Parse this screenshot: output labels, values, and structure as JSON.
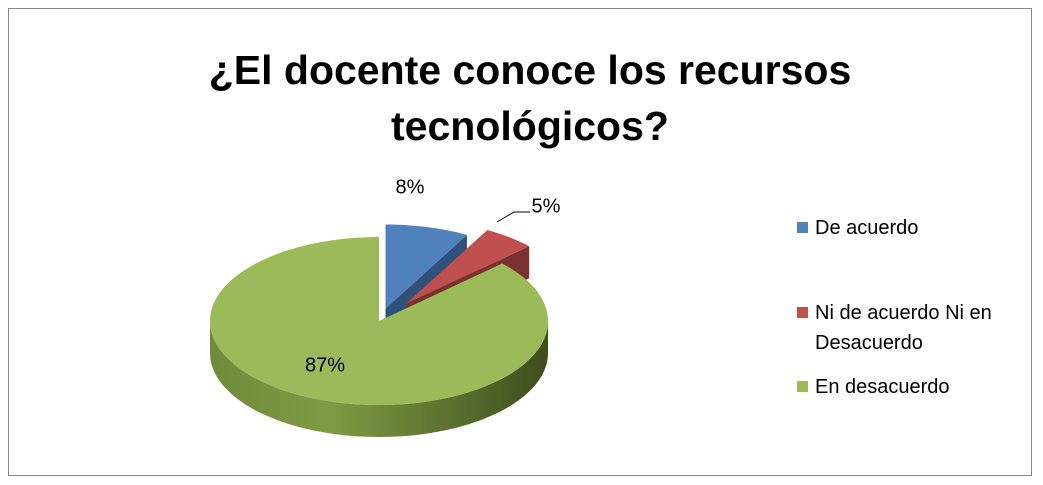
{
  "chart_data": {
    "type": "pie",
    "title": "¿El docente conoce los recursos tecnológicos?",
    "categories": [
      "De acuerdo",
      "Ni de acuerdo Ni en Desacuerdo",
      "En desacuerdo"
    ],
    "values": [
      8,
      5,
      87
    ],
    "value_labels": [
      "8%",
      "5%",
      "87%"
    ],
    "colors": [
      "#4f81bd",
      "#c0504d",
      "#9bbb59"
    ],
    "legend": "right"
  }
}
